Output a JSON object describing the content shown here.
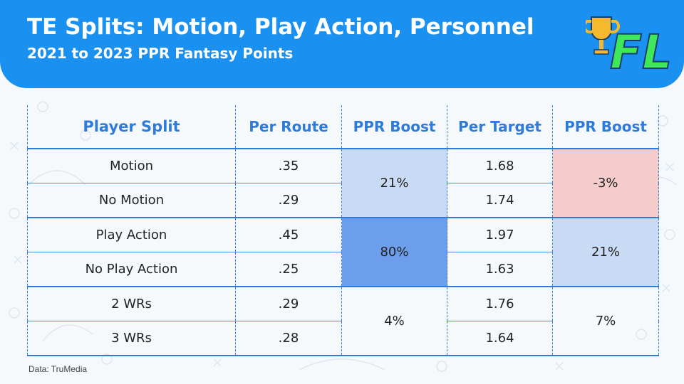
{
  "header": {
    "title": "TE Splits: Motion, Play Action, Personnel",
    "subtitle": "2021 to 2023 PPR Fantasy Points",
    "logo_text": "FL"
  },
  "colors": {
    "header_bg": "#1a90f0",
    "accent_blue": "#2f7bd9",
    "boost_light": "#c9daf5",
    "boost_strong": "#6d9eeb",
    "boost_negative": "#f4cccc",
    "logo_green": "#3ee85a",
    "trophy_gold": "#f5b82e"
  },
  "icons": [
    "trophy-icon"
  ],
  "chart_data": {
    "type": "table",
    "columns": [
      "Player Split",
      "Per Route",
      "PPR Boost",
      "Per Target",
      "PPR Boost"
    ],
    "rows": [
      {
        "split": "Motion",
        "per_route": ".35",
        "per_target": "1.68"
      },
      {
        "split": "No Motion",
        "per_route": ".29",
        "per_target": "1.74"
      },
      {
        "split": "Play Action",
        "per_route": ".45",
        "per_target": "1.97"
      },
      {
        "split": "No Play Action",
        "per_route": ".25",
        "per_target": "1.63"
      },
      {
        "split": "2 WRs",
        "per_route": ".29",
        "per_target": "1.76"
      },
      {
        "split": "3 WRs",
        "per_route": ".28",
        "per_target": "1.64"
      }
    ],
    "groups": [
      {
        "route_boost": "21%",
        "target_boost": "-3%",
        "route_shade": "light",
        "target_shade": "negative"
      },
      {
        "route_boost": "80%",
        "target_boost": "21%",
        "route_shade": "strong",
        "target_shade": "light"
      },
      {
        "route_boost": "4%",
        "target_boost": "7%",
        "route_shade": "none",
        "target_shade": "none"
      }
    ]
  },
  "footer": {
    "source": "Data: TruMedia"
  }
}
